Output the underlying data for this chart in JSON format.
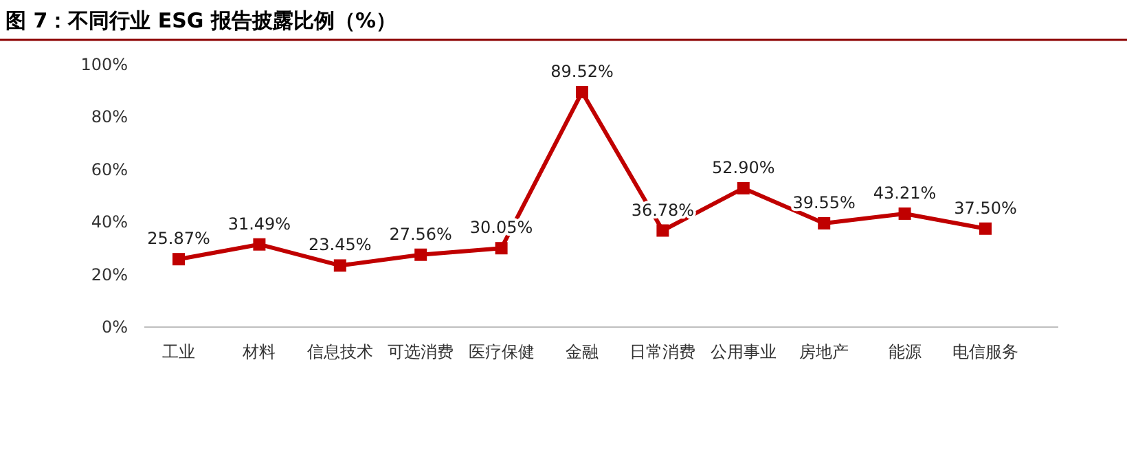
{
  "chart_data": {
    "type": "line",
    "title": "图 7：不同行业 ESG 报告披露比例（%）",
    "categories": [
      "工业",
      "材料",
      "信息技术",
      "可选消费",
      "医疗保健",
      "金融",
      "日常消费",
      "公用事业",
      "房地产",
      "能源",
      "电信服务"
    ],
    "series": [
      {
        "color": "#c00000",
        "values": [
          25.87,
          31.49,
          23.45,
          27.56,
          30.05,
          89.52,
          36.78,
          52.9,
          39.55,
          43.21,
          37.5
        ],
        "value_labels": [
          "25.87%",
          "31.49%",
          "23.45%",
          "27.56%",
          "30.05%",
          "89.52%",
          "36.78%",
          "52.90%",
          "39.55%",
          "43.21%",
          "37.50%"
        ]
      }
    ],
    "ylim": [
      0,
      100
    ],
    "yticks": [
      {
        "value": 0,
        "label": "0%"
      },
      {
        "value": 20,
        "label": "20%"
      },
      {
        "value": 40,
        "label": "40%"
      },
      {
        "value": 60,
        "label": "60%"
      },
      {
        "value": 80,
        "label": "80%"
      },
      {
        "value": 100,
        "label": "100%"
      }
    ],
    "grid": false,
    "marker": "square",
    "line_style": "solid"
  }
}
